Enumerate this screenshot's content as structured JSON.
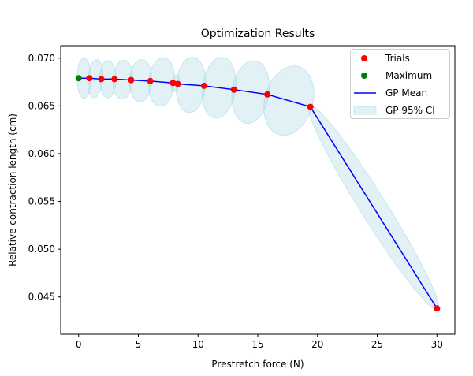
{
  "chart_data": {
    "type": "line",
    "title": "Optimization Results",
    "xlabel": "Prestretch force (N)",
    "ylabel": "Relative contraction length (cm)",
    "xlim": [
      -1.5,
      31.5
    ],
    "ylim": [
      0.0411,
      0.0713
    ],
    "x_ticks": [
      0,
      5,
      10,
      15,
      20,
      25,
      30
    ],
    "x_tick_labels": [
      "0",
      "5",
      "10",
      "15",
      "20",
      "25",
      "30"
    ],
    "y_ticks": [
      0.045,
      0.05,
      0.055,
      0.06,
      0.065,
      0.07
    ],
    "y_tick_labels": [
      "0.045",
      "0.050",
      "0.055",
      "0.060",
      "0.065",
      "0.070"
    ],
    "grid": false,
    "legend_position": "top-right",
    "series": [
      {
        "name": "Trials",
        "kind": "scatter",
        "color": "#ff0000",
        "points": [
          {
            "x": 0.9,
            "y": 0.0679
          },
          {
            "x": 1.9,
            "y": 0.0678
          },
          {
            "x": 3.0,
            "y": 0.0678
          },
          {
            "x": 4.4,
            "y": 0.0677
          },
          {
            "x": 6.0,
            "y": 0.0676
          },
          {
            "x": 7.9,
            "y": 0.0674
          },
          {
            "x": 8.3,
            "y": 0.0673
          },
          {
            "x": 10.5,
            "y": 0.0671
          },
          {
            "x": 13.0,
            "y": 0.0667
          },
          {
            "x": 15.8,
            "y": 0.0662
          },
          {
            "x": 19.4,
            "y": 0.0649
          },
          {
            "x": 30.0,
            "y": 0.0438
          }
        ]
      },
      {
        "name": "Maximum",
        "kind": "scatter",
        "color": "#008000",
        "points": [
          {
            "x": 0.0,
            "y": 0.0679
          }
        ]
      },
      {
        "name": "GP Mean",
        "kind": "line",
        "color": "#0000ff",
        "points": [
          {
            "x": 0.0,
            "y": 0.0679
          },
          {
            "x": 0.9,
            "y": 0.0679
          },
          {
            "x": 1.9,
            "y": 0.0678
          },
          {
            "x": 3.0,
            "y": 0.0678
          },
          {
            "x": 4.4,
            "y": 0.0677
          },
          {
            "x": 6.0,
            "y": 0.0676
          },
          {
            "x": 7.9,
            "y": 0.0674
          },
          {
            "x": 8.3,
            "y": 0.0673
          },
          {
            "x": 10.5,
            "y": 0.0671
          },
          {
            "x": 13.0,
            "y": 0.0667
          },
          {
            "x": 15.8,
            "y": 0.0662
          },
          {
            "x": 19.4,
            "y": 0.0649
          },
          {
            "x": 30.0,
            "y": 0.0438
          }
        ]
      },
      {
        "name": "GP 95% CI",
        "kind": "band",
        "color": "#add8e6",
        "opacity": 0.35,
        "segments": [
          {
            "x0": 0.0,
            "y0": 0.0679,
            "x1": 0.9,
            "y1": 0.0679,
            "upper": 0.0704,
            "lower": 0.0662
          },
          {
            "x0": 0.9,
            "y0": 0.0679,
            "x1": 1.9,
            "y1": 0.0678,
            "upper": 0.0702,
            "lower": 0.0662
          },
          {
            "x0": 1.9,
            "y0": 0.0678,
            "x1": 3.0,
            "y1": 0.0678,
            "upper": 0.07,
            "lower": 0.0661
          },
          {
            "x0": 3.0,
            "y0": 0.0678,
            "x1": 4.4,
            "y1": 0.0677,
            "upper": 0.07,
            "lower": 0.0659
          },
          {
            "x0": 4.4,
            "y0": 0.0677,
            "x1": 6.0,
            "y1": 0.0676,
            "upper": 0.0701,
            "lower": 0.0657
          },
          {
            "x0": 6.0,
            "y0": 0.0676,
            "x1": 7.9,
            "y1": 0.0674,
            "upper": 0.0703,
            "lower": 0.0652
          },
          {
            "x0": 7.9,
            "y0": 0.0674,
            "x1": 8.3,
            "y1": 0.0673,
            "upper": 0.0683,
            "lower": 0.0665
          },
          {
            "x0": 8.3,
            "y0": 0.0673,
            "x1": 10.5,
            "y1": 0.0671,
            "upper": 0.0702,
            "lower": 0.0644
          },
          {
            "x0": 10.5,
            "y0": 0.0671,
            "x1": 13.0,
            "y1": 0.0667,
            "upper": 0.07,
            "lower": 0.0636
          },
          {
            "x0": 13.0,
            "y0": 0.0667,
            "x1": 15.8,
            "y1": 0.0662,
            "upper": 0.0697,
            "lower": 0.0631
          },
          {
            "x0": 15.8,
            "y0": 0.0662,
            "x1": 19.4,
            "y1": 0.0649,
            "upper": 0.0693,
            "lower": 0.0619
          },
          {
            "x0": 19.4,
            "y0": 0.0649,
            "x1": 30.0,
            "y1": 0.0438,
            "upper": 0.0649,
            "lower": 0.0421
          }
        ]
      }
    ]
  }
}
